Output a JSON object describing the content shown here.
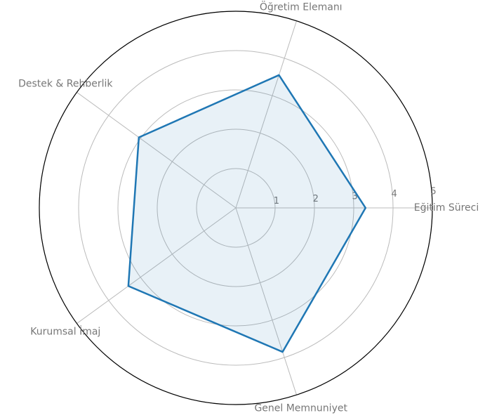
{
  "chart_data": {
    "type": "radar",
    "categories": [
      "Eğitim Süreci",
      "Öğretim Elemanı",
      "Destek & Rehberlik",
      "Kurumsal İmaj",
      "Genel Memnuniyet"
    ],
    "series": [
      {
        "color": "#1f77b4",
        "values": [
          3.3,
          3.55,
          3.05,
          3.38,
          3.85
        ]
      }
    ],
    "ylim": [
      0,
      5
    ],
    "yticks": [
      1,
      2,
      3,
      4,
      5
    ],
    "grid": true
  }
}
